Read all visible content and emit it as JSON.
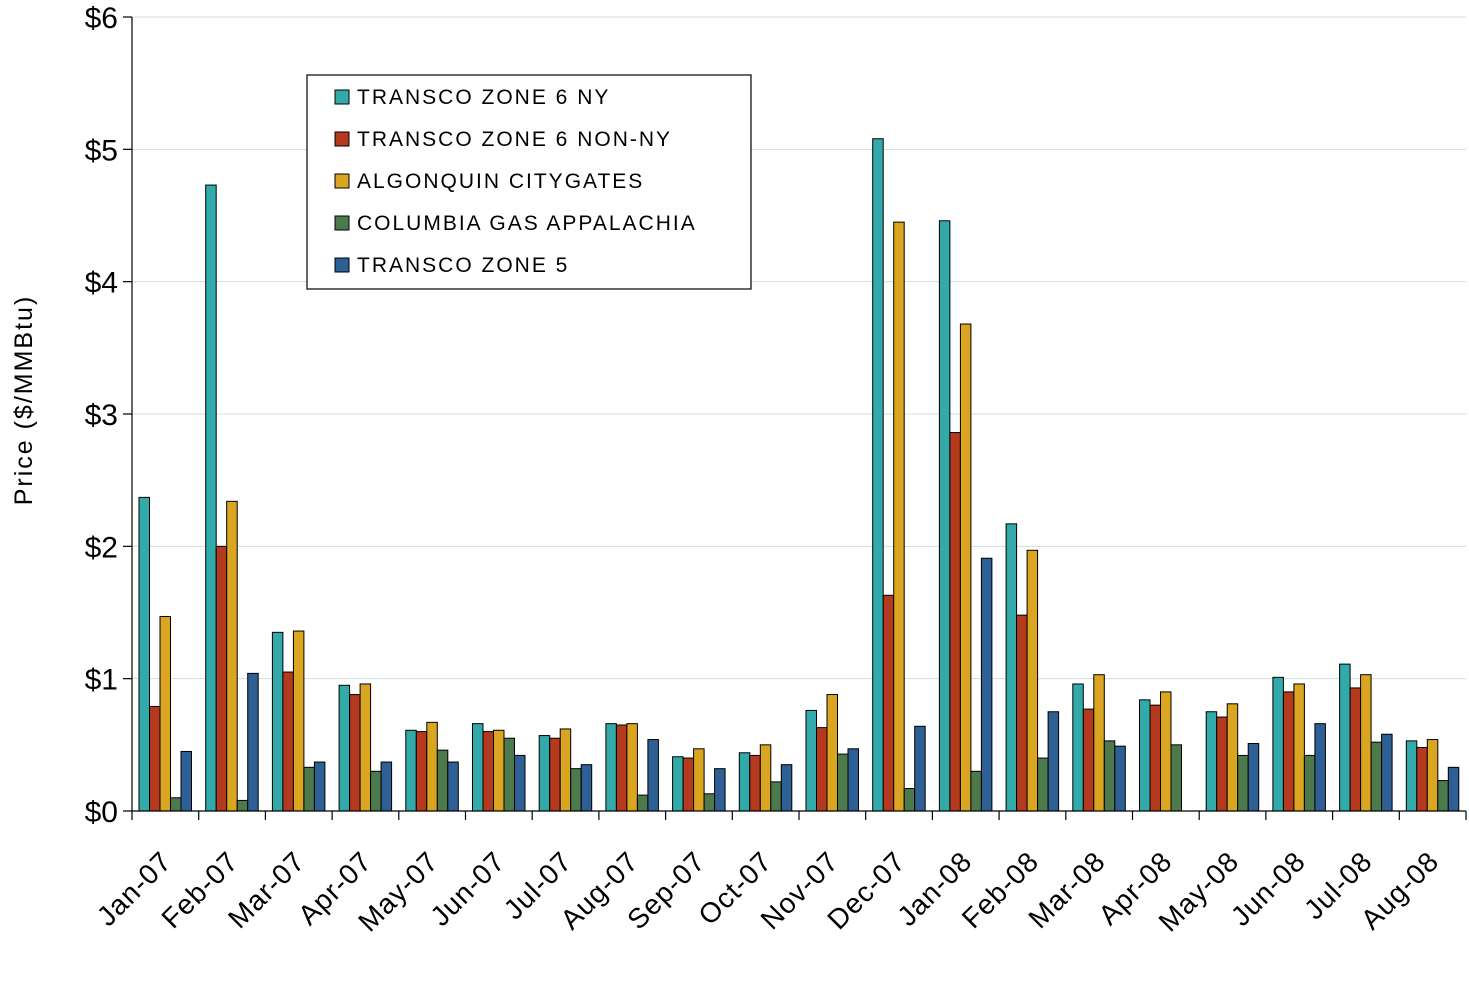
{
  "chart_data": {
    "type": "bar",
    "title": "",
    "xlabel": "",
    "ylabel": "Price  ($/MMBtu)",
    "ylim": [
      0,
      6
    ],
    "yticks": [
      "$0",
      "$1",
      "$2",
      "$3",
      "$4",
      "$5",
      "$6"
    ],
    "ytick_values": [
      0,
      1,
      2,
      3,
      4,
      5,
      6
    ],
    "grid": true,
    "legend_position": "top-left",
    "categories": [
      "Jan-07",
      "Feb-07",
      "Mar-07",
      "Apr-07",
      "May-07",
      "Jun-07",
      "Jul-07",
      "Aug-07",
      "Sep-07",
      "Oct-07",
      "Nov-07",
      "Dec-07",
      "Jan-08",
      "Feb-08",
      "Mar-08",
      "Apr-08",
      "May-08",
      "Jun-08",
      "Jul-08",
      "Aug-08"
    ],
    "series": [
      {
        "name": "TRANSCO ZONE 6 NY",
        "color": "#33AAAA",
        "values": [
          2.37,
          4.73,
          1.35,
          0.95,
          0.61,
          0.66,
          0.57,
          0.66,
          0.41,
          0.44,
          0.76,
          5.08,
          4.46,
          2.17,
          0.96,
          0.84,
          0.75,
          1.01,
          1.11,
          0.53
        ]
      },
      {
        "name": "TRANSCO ZONE 6 NON-NY",
        "color": "#B5391E",
        "values": [
          0.79,
          2.0,
          1.05,
          0.88,
          0.6,
          0.6,
          0.55,
          0.65,
          0.4,
          0.42,
          0.63,
          1.63,
          2.86,
          1.48,
          0.77,
          0.8,
          0.71,
          0.9,
          0.93,
          0.48
        ]
      },
      {
        "name": "ALGONQUIN CITYGATES",
        "color": "#DAA520",
        "values": [
          1.47,
          2.34,
          1.36,
          0.96,
          0.67,
          0.61,
          0.62,
          0.66,
          0.47,
          0.5,
          0.88,
          4.45,
          3.68,
          1.97,
          1.03,
          0.9,
          0.81,
          0.96,
          1.03,
          0.54
        ]
      },
      {
        "name": "COLUMBIA GAS APPALACHIA",
        "color": "#4C7A4C",
        "values": [
          0.1,
          0.08,
          0.33,
          0.3,
          0.46,
          0.55,
          0.32,
          0.12,
          0.13,
          0.22,
          0.43,
          0.17,
          0.3,
          0.4,
          0.53,
          0.5,
          0.42,
          0.42,
          0.52,
          0.23
        ]
      },
      {
        "name": "TRANSCO ZONE 5",
        "color": "#2E5F95",
        "values": [
          0.45,
          1.04,
          0.37,
          0.37,
          0.37,
          0.42,
          0.35,
          0.54,
          0.32,
          0.35,
          0.47,
          0.64,
          1.91,
          0.75,
          0.49,
          null,
          0.51,
          0.66,
          0.58,
          0.33
        ]
      }
    ]
  }
}
